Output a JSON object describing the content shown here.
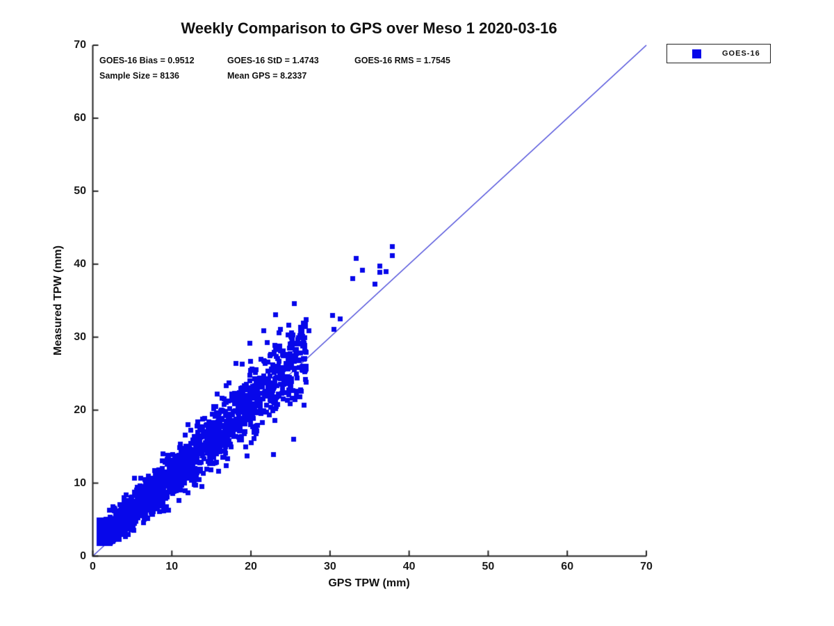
{
  "chart_data": {
    "type": "scatter",
    "title": "Weekly Comparison to GPS over Meso 1 2020-03-16",
    "xlabel": "GPS TPW (mm)",
    "ylabel": "Measured TPW (mm)",
    "xlim": [
      0,
      70
    ],
    "ylim": [
      0,
      70
    ],
    "xticks": [
      0,
      10,
      20,
      30,
      40,
      50,
      60,
      70
    ],
    "yticks": [
      0,
      10,
      20,
      30,
      40,
      50,
      60,
      70
    ],
    "grid": false,
    "axis_color": "#222222",
    "stats": {
      "bias": 0.9512,
      "std": 1.4743,
      "rms": 1.7545,
      "sample_size": 8136,
      "mean_gps": 8.2337,
      "bias_text": "GOES-16 Bias = 0.9512",
      "std_text": "GOES-16 StD = 1.4743",
      "rms_text": "GOES-16 RMS = 1.7545",
      "sample_text": "Sample Size = 8136",
      "mean_text": "Mean GPS = 8.2337"
    },
    "legend": {
      "position": "outside-top-right",
      "entries": [
        {
          "label": "GOES-16",
          "marker": "square",
          "color": "#0707ea"
        }
      ]
    },
    "reference_line": {
      "x": [
        0,
        70
      ],
      "y": [
        0,
        70
      ],
      "color": "#3a3ad6"
    },
    "series": [
      {
        "name": "GOES-16",
        "marker": "square",
        "marker_color": "#0707ea",
        "marker_size_px": 7,
        "sample_size": 8136,
        "cluster_model": {
          "render_count": 2600,
          "seed": 1337,
          "gps_min": 0.8,
          "gps_max": 27,
          "shape_exponent": 2.2,
          "bias": 0.95,
          "noise_base": 0.55,
          "noise_per_gps": 0.085,
          "skew_fraction": 0.14,
          "skew_max": 2.4,
          "measured_min": 1.7
        },
        "outlier_points": [
          [
            37.9,
            42.4
          ],
          [
            37.9,
            41.2
          ],
          [
            33.3,
            40.8
          ],
          [
            36.3,
            39.7
          ],
          [
            37.1,
            39.0
          ],
          [
            34.1,
            39.2
          ],
          [
            36.3,
            38.9
          ],
          [
            32.9,
            38.0
          ],
          [
            35.7,
            37.3
          ],
          [
            25.5,
            34.6
          ],
          [
            23.1,
            33.1
          ],
          [
            30.3,
            33.0
          ],
          [
            31.3,
            32.5
          ],
          [
            30.5,
            31.1
          ],
          [
            27.3,
            30.9
          ],
          [
            26.2,
            30.2
          ],
          [
            19.9,
            29.2
          ],
          [
            18.1,
            26.4
          ],
          [
            26.9,
            25.4
          ],
          [
            25.6,
            21.4
          ],
          [
            23.2,
            20.5
          ],
          [
            20.8,
            17.9
          ],
          [
            13.0,
            9.7
          ],
          [
            13.8,
            9.5
          ],
          [
            12.5,
            10.4
          ]
        ]
      }
    ]
  }
}
